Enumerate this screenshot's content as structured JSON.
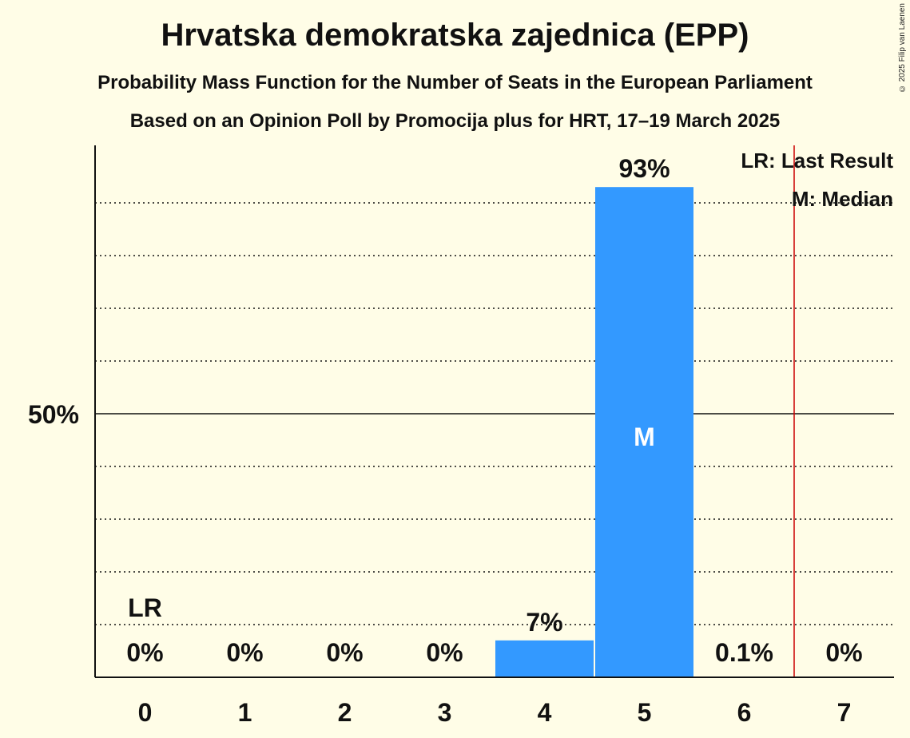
{
  "title": "Hrvatska demokratska zajednica (EPP)",
  "subtitle": "Probability Mass Function for the Number of Seats in the European Parliament",
  "subtitle2": "Based on an Opinion Poll by Promocija plus for HRT, 17–19 March 2025",
  "copyright": "© 2025 Filip van Laenen",
  "legend": {
    "lr": "LR: Last Result",
    "m": "M: Median"
  },
  "colors": {
    "bar": "#3399ff",
    "background": "#fffde7",
    "lastResultLine": "#cc0000"
  },
  "chart_data": {
    "type": "bar",
    "categories": [
      "0",
      "1",
      "2",
      "3",
      "4",
      "5",
      "6",
      "7"
    ],
    "values": [
      0,
      0,
      0,
      0,
      7,
      93,
      0.1,
      0
    ],
    "labels": [
      "0%",
      "0%",
      "0%",
      "0%",
      "7%",
      "93%",
      "0.1%",
      "0%"
    ],
    "ylim": [
      0,
      100
    ],
    "yticks": [
      {
        "value": 50,
        "label": "50%"
      }
    ],
    "gridlines": [
      10,
      20,
      30,
      40,
      60,
      70,
      80,
      90
    ],
    "median": {
      "index": 5,
      "label": "M"
    },
    "last_result": {
      "index": 0,
      "label": "LR"
    },
    "majority_line": 6.5,
    "legend_position": "top-right"
  }
}
